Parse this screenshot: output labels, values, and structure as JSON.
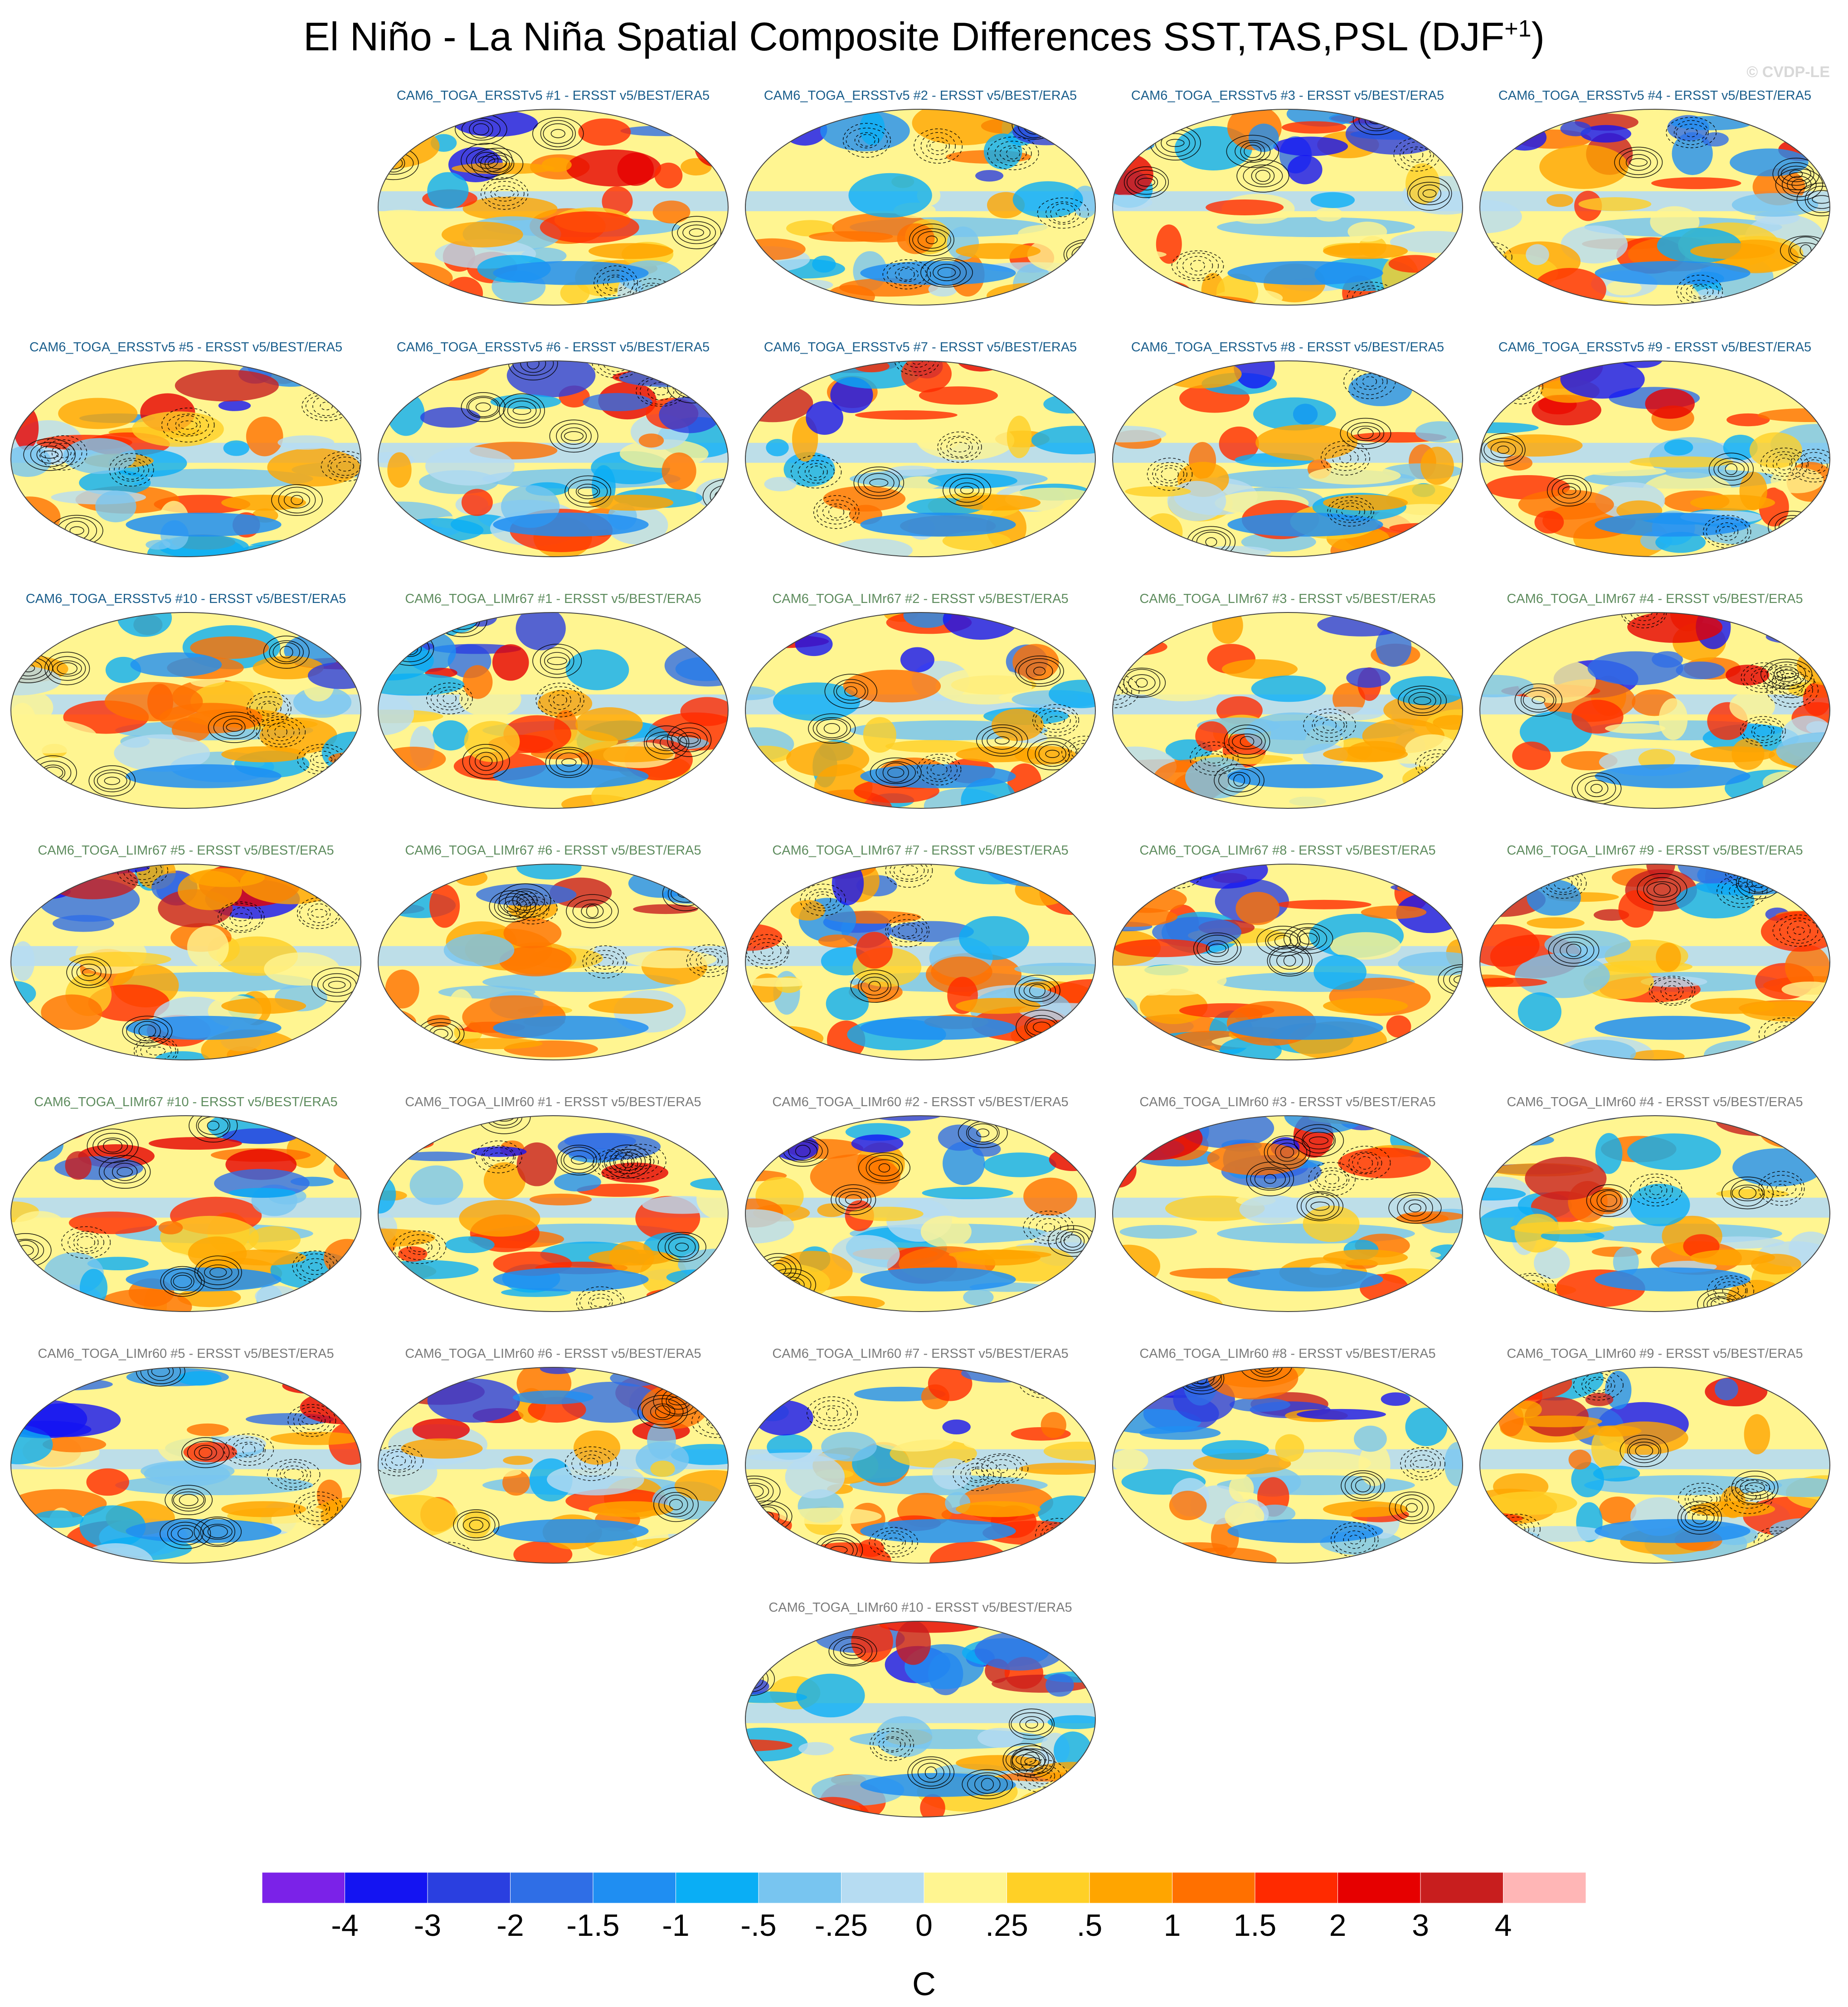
{
  "title": {
    "main": "El Niño - La Niña Spatial Composite Differences SST,TAS,PSL (DJF",
    "superscript": "+1",
    "close": ")"
  },
  "watermark": "© CVDP-LE",
  "colors": {
    "title_ersst": "#1a5e8c",
    "title_limr67": "#5e8c5e",
    "title_limr60": "#7a7a7a",
    "contour": "#000000"
  },
  "panels": [
    {
      "label": "CAM6_TOGA_ERSSTv5 #1 - ERSST v5/BEST/ERA5",
      "group": "ersst"
    },
    {
      "label": "CAM6_TOGA_ERSSTv5 #2 - ERSST v5/BEST/ERA5",
      "group": "ersst"
    },
    {
      "label": "CAM6_TOGA_ERSSTv5 #3 - ERSST v5/BEST/ERA5",
      "group": "ersst"
    },
    {
      "label": "CAM6_TOGA_ERSSTv5 #4 - ERSST v5/BEST/ERA5",
      "group": "ersst"
    },
    {
      "label": "CAM6_TOGA_ERSSTv5 #5 - ERSST v5/BEST/ERA5",
      "group": "ersst"
    },
    {
      "label": "CAM6_TOGA_ERSSTv5 #6 - ERSST v5/BEST/ERA5",
      "group": "ersst"
    },
    {
      "label": "CAM6_TOGA_ERSSTv5 #7 - ERSST v5/BEST/ERA5",
      "group": "ersst"
    },
    {
      "label": "CAM6_TOGA_ERSSTv5 #8 - ERSST v5/BEST/ERA5",
      "group": "ersst"
    },
    {
      "label": "CAM6_TOGA_ERSSTv5 #9 - ERSST v5/BEST/ERA5",
      "group": "ersst"
    },
    {
      "label": "CAM6_TOGA_ERSSTv5 #10 - ERSST v5/BEST/ERA5",
      "group": "ersst"
    },
    {
      "label": "CAM6_TOGA_LIMr67 #1 - ERSST v5/BEST/ERA5",
      "group": "limr67"
    },
    {
      "label": "CAM6_TOGA_LIMr67 #2 - ERSST v5/BEST/ERA5",
      "group": "limr67"
    },
    {
      "label": "CAM6_TOGA_LIMr67 #3 - ERSST v5/BEST/ERA5",
      "group": "limr67"
    },
    {
      "label": "CAM6_TOGA_LIMr67 #4 - ERSST v5/BEST/ERA5",
      "group": "limr67"
    },
    {
      "label": "CAM6_TOGA_LIMr67 #5 - ERSST v5/BEST/ERA5",
      "group": "limr67"
    },
    {
      "label": "CAM6_TOGA_LIMr67 #6 - ERSST v5/BEST/ERA5",
      "group": "limr67"
    },
    {
      "label": "CAM6_TOGA_LIMr67 #7 - ERSST v5/BEST/ERA5",
      "group": "limr67"
    },
    {
      "label": "CAM6_TOGA_LIMr67 #8 - ERSST v5/BEST/ERA5",
      "group": "limr67"
    },
    {
      "label": "CAM6_TOGA_LIMr67 #9 - ERSST v5/BEST/ERA5",
      "group": "limr67"
    },
    {
      "label": "CAM6_TOGA_LIMr67 #10 - ERSST v5/BEST/ERA5",
      "group": "limr67"
    },
    {
      "label": "CAM6_TOGA_LIMr60 #1 - ERSST v5/BEST/ERA5",
      "group": "limr60"
    },
    {
      "label": "CAM6_TOGA_LIMr60 #2 - ERSST v5/BEST/ERA5",
      "group": "limr60"
    },
    {
      "label": "CAM6_TOGA_LIMr60 #3 - ERSST v5/BEST/ERA5",
      "group": "limr60"
    },
    {
      "label": "CAM6_TOGA_LIMr60 #4 - ERSST v5/BEST/ERA5",
      "group": "limr60"
    },
    {
      "label": "CAM6_TOGA_LIMr60 #5 - ERSST v5/BEST/ERA5",
      "group": "limr60"
    },
    {
      "label": "CAM6_TOGA_LIMr60 #6 - ERSST v5/BEST/ERA5",
      "group": "limr60"
    },
    {
      "label": "CAM6_TOGA_LIMr60 #7 - ERSST v5/BEST/ERA5",
      "group": "limr60"
    },
    {
      "label": "CAM6_TOGA_LIMr60 #8 - ERSST v5/BEST/ERA5",
      "group": "limr60"
    },
    {
      "label": "CAM6_TOGA_LIMr60 #9 - ERSST v5/BEST/ERA5",
      "group": "limr60"
    },
    {
      "label": "CAM6_TOGA_LIMr60 #10 - ERSST v5/BEST/ERA5",
      "group": "limr60"
    }
  ],
  "colorbar": {
    "units": "C",
    "tick_labels": [
      "-4",
      "-3",
      "-2",
      "-1.5",
      "-1",
      "-.5",
      "-.25",
      "0",
      ".25",
      ".5",
      "1",
      "1.5",
      "2",
      "3",
      "4"
    ],
    "colors": [
      "#7b22e8",
      "#1414f2",
      "#2a3fe0",
      "#2f6ee6",
      "#1f8ef2",
      "#0aaef5",
      "#78c5f0",
      "#b6dcf2",
      "#fff591",
      "#ffd026",
      "#ffa500",
      "#ff7000",
      "#ff2a00",
      "#e60000",
      "#c81e1e",
      "#ffb6b6"
    ]
  },
  "chart_data": {
    "type": "heatmap",
    "title": "El Niño - La Niña Spatial Composite Differences SST,TAS,PSL (DJF+1)",
    "layout": "grid of 30 global map panels",
    "color_levels": [
      -4,
      -3,
      -2,
      -1.5,
      -1,
      -0.5,
      -0.25,
      0,
      0.25,
      0.5,
      1,
      1.5,
      2,
      3,
      4
    ],
    "units": "C",
    "contours": "PSL difference contours: solid positive, dashed negative"
  }
}
